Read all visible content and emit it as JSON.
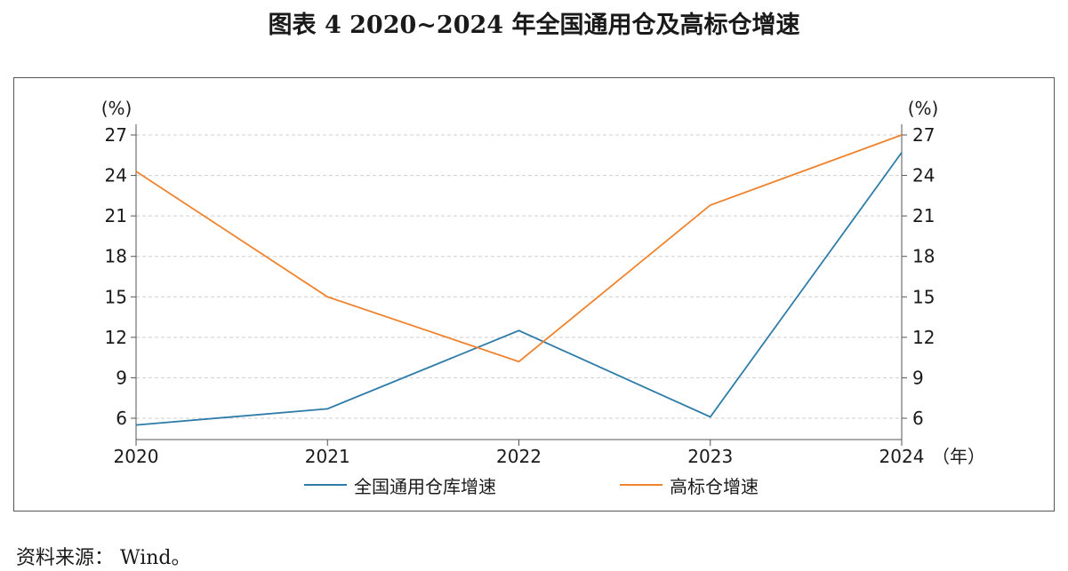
{
  "title": "图表 4  2020~2024 年全国通用仓及高标仓增速",
  "source": "资料来源： Wind。",
  "chart_data": {
    "type": "line",
    "title": "图表 4  2020~2024 年全国通用仓及高标仓增速",
    "x": [
      "2020",
      "2021",
      "2022",
      "2023",
      "2024"
    ],
    "x_unit": "（年）",
    "y_unit_left": "(%)",
    "y_unit_right": "(%)",
    "ylim": [
      5,
      27
    ],
    "yticks": [
      6,
      9,
      12,
      15,
      18,
      21,
      24,
      27
    ],
    "grid": true,
    "legend_position": "bottom",
    "series": [
      {
        "name": "全国通用仓库增速",
        "color": "#2e7ca8",
        "values": [
          5.5,
          6.7,
          12.5,
          6.1,
          25.7
        ]
      },
      {
        "name": "高标仓增速",
        "color": "#f0832e",
        "values": [
          24.3,
          15.0,
          10.2,
          21.8,
          27.0
        ]
      }
    ]
  }
}
